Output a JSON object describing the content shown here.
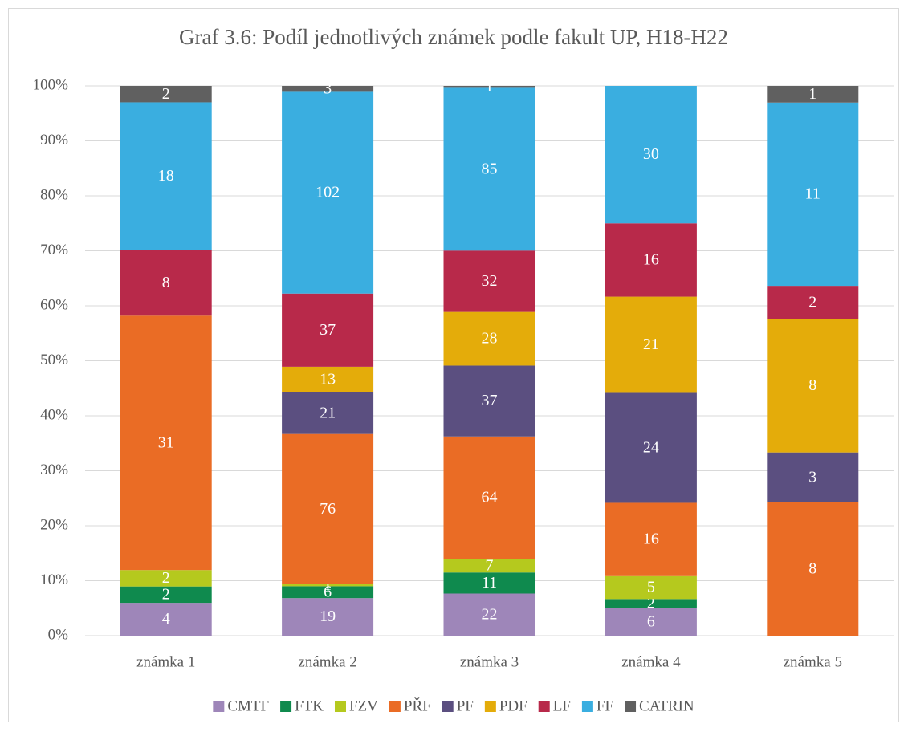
{
  "chart_data": {
    "type": "bar",
    "stacking": "percent",
    "title": "Graf 3.6: Podíl jednotlivých známek podle fakult UP, H18-H22",
    "categories": [
      "známka 1",
      "známka 2",
      "známka 3",
      "známka 4",
      "známka 5"
    ],
    "series": [
      {
        "name": "CMTF",
        "color": "#9e86b9",
        "values": [
          4,
          19,
          22,
          6,
          null
        ]
      },
      {
        "name": "FTK",
        "color": "#0f8a4e",
        "values": [
          2,
          6,
          11,
          2,
          null
        ]
      },
      {
        "name": "FZV",
        "color": "#b5c91e",
        "values": [
          2,
          1,
          7,
          5,
          null
        ]
      },
      {
        "name": "PŘF",
        "color": "#ea6c25",
        "values": [
          31,
          76,
          64,
          16,
          8
        ]
      },
      {
        "name": "PF",
        "color": "#5b4f80",
        "values": [
          null,
          21,
          37,
          24,
          3
        ]
      },
      {
        "name": "PDF",
        "color": "#e4ac0a",
        "values": [
          null,
          13,
          28,
          21,
          8
        ]
      },
      {
        "name": "LF",
        "color": "#b8294a",
        "values": [
          8,
          37,
          32,
          16,
          2
        ]
      },
      {
        "name": "FF",
        "color": "#3aaee0",
        "values": [
          18,
          102,
          85,
          30,
          11
        ]
      },
      {
        "name": "CATRIN",
        "color": "#606060",
        "values": [
          2,
          3,
          1,
          null,
          1
        ]
      }
    ],
    "ylim": [
      0,
      100
    ],
    "yticks": [
      {
        "value": 0,
        "label": "0%"
      },
      {
        "value": 10,
        "label": "10%"
      },
      {
        "value": 20,
        "label": "20%"
      },
      {
        "value": 30,
        "label": "30%"
      },
      {
        "value": 40,
        "label": "40%"
      },
      {
        "value": 50,
        "label": "50%"
      },
      {
        "value": 60,
        "label": "60%"
      },
      {
        "value": 70,
        "label": "70%"
      },
      {
        "value": 80,
        "label": "80%"
      },
      {
        "value": 90,
        "label": "90%"
      },
      {
        "value": 100,
        "label": "100%"
      }
    ],
    "grid": true,
    "legend": "bottom"
  }
}
